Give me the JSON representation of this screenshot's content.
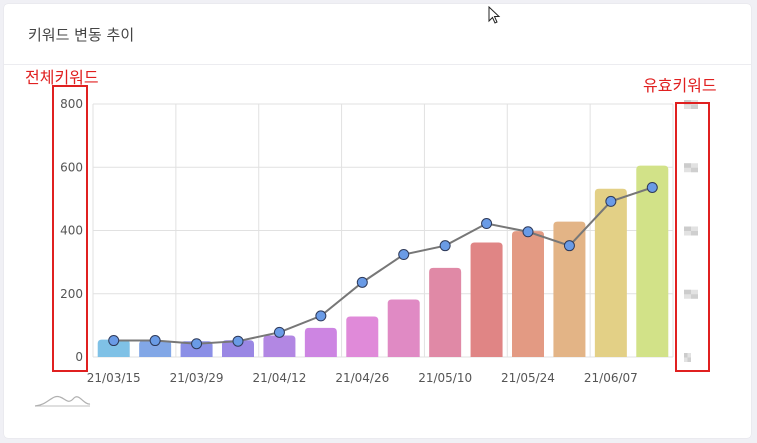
{
  "card": {
    "title": "키워드 변동 추이"
  },
  "annotations": {
    "left_axis_label": "전체키워드",
    "right_axis_label": "유효키워드"
  },
  "chart_data": {
    "type": "bar",
    "x_tick_labels": [
      "21/03/15",
      "21/03/29",
      "21/04/12",
      "21/04/26",
      "21/05/10",
      "21/05/24",
      "21/06/07"
    ],
    "y_ticks": [
      0,
      200,
      400,
      600,
      800
    ],
    "ylim": [
      0,
      800
    ],
    "grid": true,
    "series": [
      {
        "kind": "bar",
        "values": [
          55,
          52,
          50,
          53,
          68,
          92,
          128,
          182,
          282,
          362,
          398,
          428,
          532,
          605
        ]
      },
      {
        "kind": "line",
        "values": [
          52,
          52,
          42,
          50,
          78,
          130,
          236,
          324,
          352,
          422,
          396,
          352,
          492,
          536
        ]
      }
    ],
    "bar_colors": [
      "#7fc1e6",
      "#82a7e6",
      "#8b8fe6",
      "#9a87e4",
      "#b287e3",
      "#cd85e2",
      "#e08ad9",
      "#e08ac4",
      "#e089a6",
      "#e08585",
      "#e39a83",
      "#e3b486",
      "#e3d086",
      "#d2e288"
    ],
    "line_color": "#777777",
    "marker_color": "#6a9be6"
  }
}
